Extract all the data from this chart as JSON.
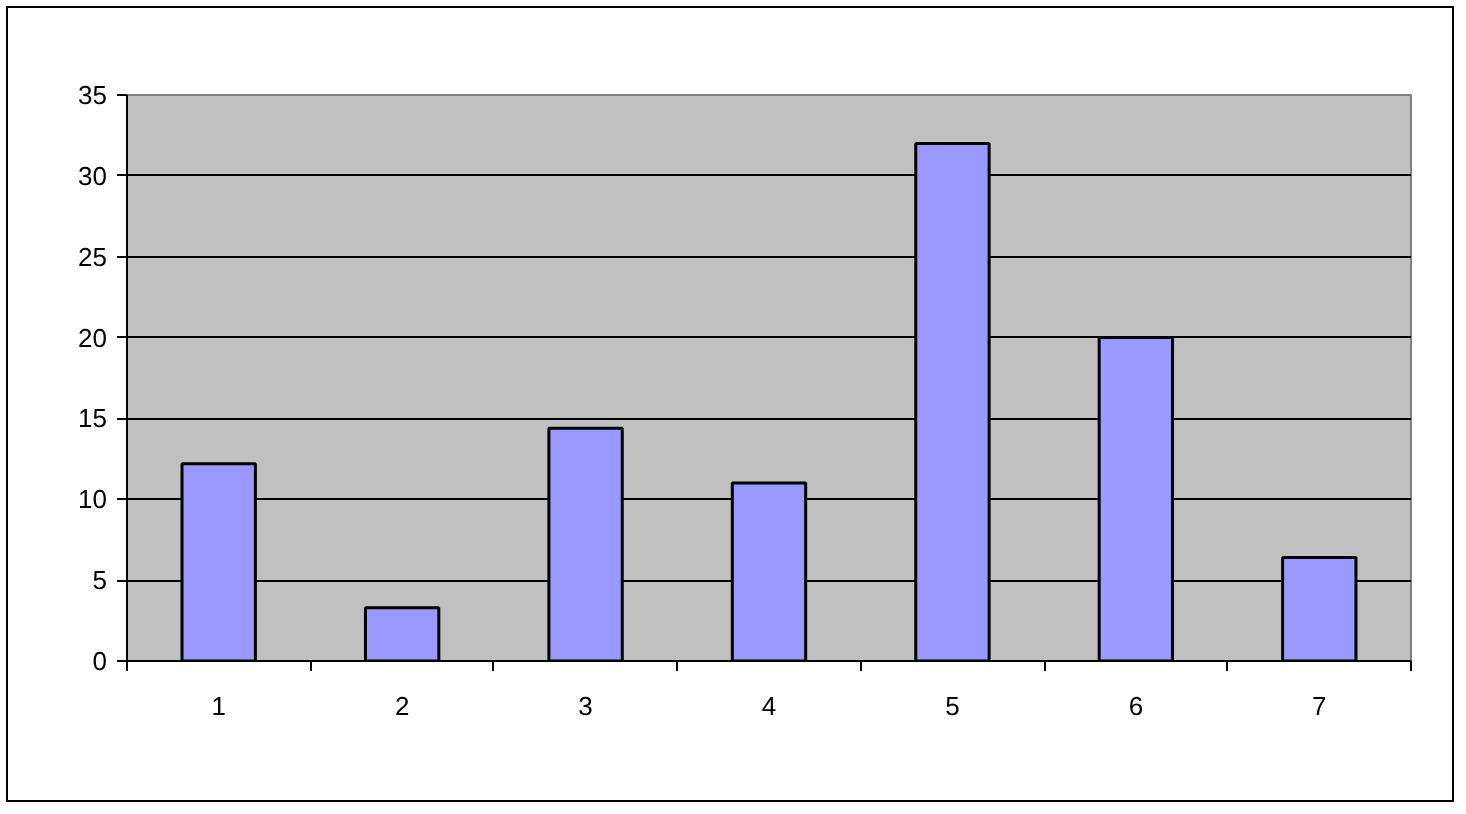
{
  "chart_data": {
    "type": "bar",
    "categories": [
      "1",
      "2",
      "3",
      "4",
      "5",
      "6",
      "7"
    ],
    "values": [
      12.2,
      3.3,
      14.4,
      11,
      32,
      20,
      6.4
    ],
    "color": "#9999ff",
    "ylim": [
      0,
      35
    ],
    "yticks": [
      0,
      5,
      10,
      15,
      20,
      25,
      30,
      35
    ],
    "grid": "y"
  }
}
